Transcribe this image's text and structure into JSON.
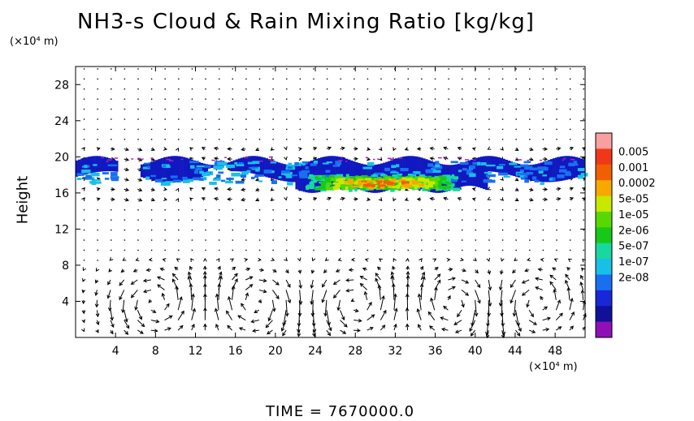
{
  "chart_data": {
    "type": "heatmap",
    "title": "NH3-s Cloud & Rain Mixing Ratio [kg/kg]",
    "ylabel": "Height",
    "xunit": "(×10⁴ m)",
    "yunit": "(×10⁴ m)",
    "footer": "TIME = 7670000.0",
    "xlim": [
      0,
      51
    ],
    "ylim": [
      0,
      30
    ],
    "xticks": [
      "4",
      "8",
      "12",
      "16",
      "20",
      "24",
      "28",
      "32",
      "36",
      "40",
      "44",
      "48"
    ],
    "xtick_values": [
      4,
      8,
      12,
      16,
      20,
      24,
      28,
      32,
      36,
      40,
      44,
      48
    ],
    "yticks": [
      "4",
      "8",
      "12",
      "16",
      "20",
      "24",
      "28"
    ],
    "ytick_values": [
      4,
      8,
      12,
      16,
      20,
      24,
      28
    ],
    "colorbar": {
      "labels": [
        "0.005",
        "0.001",
        "0.0002",
        "5e-05",
        "1e-05",
        "2e-06",
        "5e-07",
        "1e-07",
        "2e-08"
      ],
      "colors": [
        "#f8a0a0",
        "#f03818",
        "#f06000",
        "#f8a800",
        "#c8e800",
        "#58d800",
        "#18c818",
        "#18d8a0",
        "#18c0e8",
        "#1870f0",
        "#1828d8",
        "#101098",
        "#9010b8"
      ]
    },
    "cloud_layer": {
      "y_min": 16.5,
      "y_max": 20,
      "x_extent": [
        0,
        51
      ],
      "core_x": [
        23,
        38
      ],
      "core_y": [
        16.5,
        18.5
      ],
      "peak_value": "0.0002"
    },
    "wind_field": {
      "description_circulations_x": [
        8,
        18,
        28,
        38,
        46
      ],
      "max_height": 9
    }
  }
}
